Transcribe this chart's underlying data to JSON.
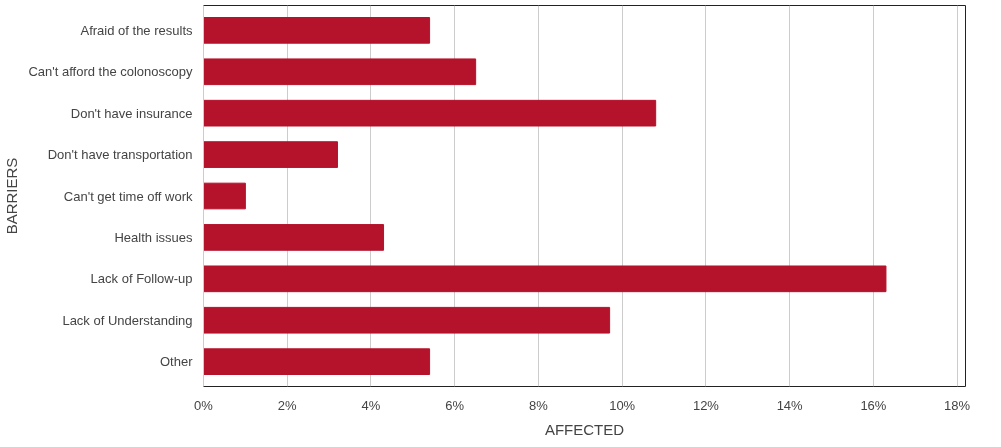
{
  "chart_data": {
    "type": "bar",
    "orientation": "horizontal",
    "xlabel": "AFFECTED",
    "ylabel": "BARRIERS",
    "categories": [
      "Afraid of the results",
      "Can't afford the colonoscopy",
      "Don't have insurance",
      "Don't have transportation",
      "Can't get time off work",
      "Health issues",
      "Lack of Follow-up",
      "Lack of Understanding",
      "Other"
    ],
    "values": [
      5.4,
      6.5,
      10.8,
      3.2,
      1.0,
      4.3,
      16.3,
      9.7,
      5.4
    ],
    "color": "#b5122b",
    "xlim": [
      0,
      18.2
    ],
    "xticks": [
      {
        "value": 0,
        "label": "0%"
      },
      {
        "value": 2,
        "label": "2%"
      },
      {
        "value": 4,
        "label": "4%"
      },
      {
        "value": 6,
        "label": "6%"
      },
      {
        "value": 8,
        "label": "8%"
      },
      {
        "value": 10,
        "label": "10%"
      },
      {
        "value": 12,
        "label": "12%"
      },
      {
        "value": 14,
        "label": "14%"
      },
      {
        "value": 16,
        "label": "16%"
      },
      {
        "value": 18,
        "label": "18%"
      }
    ],
    "grid": "x"
  }
}
